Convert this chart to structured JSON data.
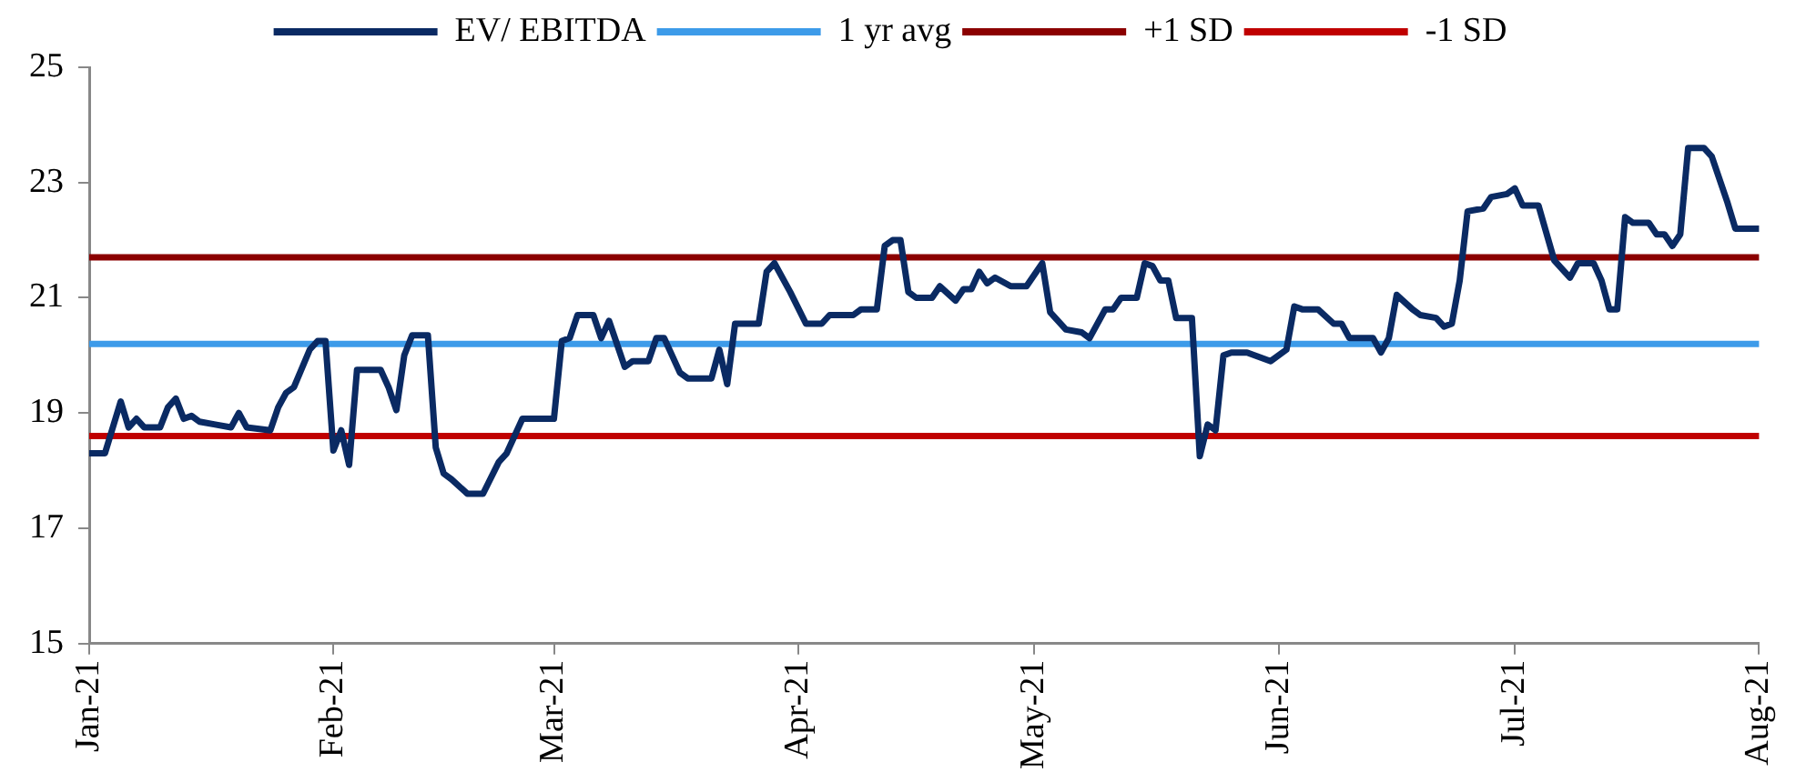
{
  "chart_data": {
    "type": "line",
    "legend": "top",
    "grid": false,
    "marker": "none",
    "line_style": "solid",
    "xlim": [
      "2021-01-01",
      "2021-08-01"
    ],
    "xticks": [
      {
        "value": "2021-01-01",
        "label": "Jan-21"
      },
      {
        "value": "2021-02-01",
        "label": "Feb-21"
      },
      {
        "value": "2021-03-01",
        "label": "Mar-21"
      },
      {
        "value": "2021-04-01",
        "label": "Apr-21"
      },
      {
        "value": "2021-05-01",
        "label": "May-21"
      },
      {
        "value": "2021-06-01",
        "label": "Jun-21"
      },
      {
        "value": "2021-07-01",
        "label": "Jul-21"
      },
      {
        "value": "2021-08-01",
        "label": "Aug-21"
      }
    ],
    "ylim": [
      15,
      25
    ],
    "yticks": [
      15,
      17,
      19,
      21,
      23,
      25
    ],
    "series": [
      {
        "name": "EV/ EBITDA",
        "color": "#0a2a63",
        "x": [
          "2021-01-01",
          "2021-01-03",
          "2021-01-05",
          "2021-01-06",
          "2021-01-07",
          "2021-01-08",
          "2021-01-10",
          "2021-01-11",
          "2021-01-12",
          "2021-01-13",
          "2021-01-14",
          "2021-01-15",
          "2021-01-17",
          "2021-01-19",
          "2021-01-20",
          "2021-01-21",
          "2021-01-24",
          "2021-01-25",
          "2021-01-26",
          "2021-01-27",
          "2021-01-29",
          "2021-01-30",
          "2021-01-31",
          "2021-02-01",
          "2021-02-02",
          "2021-02-03",
          "2021-02-04",
          "2021-02-07",
          "2021-02-08",
          "2021-02-09",
          "2021-02-10",
          "2021-02-11",
          "2021-02-13",
          "2021-02-14",
          "2021-02-15",
          "2021-02-16",
          "2021-02-18",
          "2021-02-20",
          "2021-02-22",
          "2021-02-23",
          "2021-02-25",
          "2021-02-27",
          "2021-03-01",
          "2021-03-02",
          "2021-03-03",
          "2021-03-04",
          "2021-03-06",
          "2021-03-07",
          "2021-03-08",
          "2021-03-10",
          "2021-03-11",
          "2021-03-13",
          "2021-03-14",
          "2021-03-15",
          "2021-03-17",
          "2021-03-18",
          "2021-03-21",
          "2021-03-22",
          "2021-03-23",
          "2021-03-24",
          "2021-03-27",
          "2021-03-28",
          "2021-03-29",
          "2021-03-31",
          "2021-04-02",
          "2021-04-04",
          "2021-04-05",
          "2021-04-08",
          "2021-04-09",
          "2021-04-11",
          "2021-04-12",
          "2021-04-13",
          "2021-04-14",
          "2021-04-15",
          "2021-04-16",
          "2021-04-18",
          "2021-04-19",
          "2021-04-21",
          "2021-04-22",
          "2021-04-23",
          "2021-04-24",
          "2021-04-25",
          "2021-04-26",
          "2021-04-28",
          "2021-04-30",
          "2021-05-02",
          "2021-05-03",
          "2021-05-05",
          "2021-05-07",
          "2021-05-08",
          "2021-05-10",
          "2021-05-11",
          "2021-05-12",
          "2021-05-14",
          "2021-05-15",
          "2021-05-16",
          "2021-05-17",
          "2021-05-18",
          "2021-05-19",
          "2021-05-21",
          "2021-05-22",
          "2021-05-23",
          "2021-05-24",
          "2021-05-25",
          "2021-05-26",
          "2021-05-28",
          "2021-05-31",
          "2021-06-02",
          "2021-06-03",
          "2021-06-04",
          "2021-06-06",
          "2021-06-08",
          "2021-06-09",
          "2021-06-10",
          "2021-06-13",
          "2021-06-14",
          "2021-06-15",
          "2021-06-16",
          "2021-06-18",
          "2021-06-19",
          "2021-06-21",
          "2021-06-22",
          "2021-06-23",
          "2021-06-24",
          "2021-06-25",
          "2021-06-27",
          "2021-06-28",
          "2021-06-30",
          "2021-07-01",
          "2021-07-02",
          "2021-07-04",
          "2021-07-06",
          "2021-07-08",
          "2021-07-09",
          "2021-07-11",
          "2021-07-12",
          "2021-07-13",
          "2021-07-14",
          "2021-07-15",
          "2021-07-16",
          "2021-07-18",
          "2021-07-19",
          "2021-07-20",
          "2021-07-21",
          "2021-07-22",
          "2021-07-23",
          "2021-07-25",
          "2021-07-26",
          "2021-07-28",
          "2021-07-29",
          "2021-08-01"
        ],
        "values": [
          18.3,
          18.3,
          19.2,
          18.75,
          18.9,
          18.75,
          18.75,
          19.1,
          19.25,
          18.9,
          18.95,
          18.85,
          18.8,
          18.75,
          19.0,
          18.75,
          18.7,
          19.1,
          19.35,
          19.45,
          20.1,
          20.25,
          20.25,
          18.35,
          18.7,
          18.1,
          19.75,
          19.75,
          19.45,
          19.05,
          20.0,
          20.35,
          20.35,
          18.4,
          17.95,
          17.85,
          17.6,
          17.6,
          18.15,
          18.3,
          18.9,
          18.9,
          18.9,
          20.25,
          20.3,
          20.7,
          20.7,
          20.3,
          20.6,
          19.8,
          19.9,
          19.9,
          20.3,
          20.3,
          19.7,
          19.6,
          19.6,
          20.1,
          19.5,
          20.55,
          20.55,
          21.45,
          21.6,
          21.1,
          20.55,
          20.55,
          20.7,
          20.7,
          20.8,
          20.8,
          21.9,
          22.0,
          22.0,
          21.1,
          21.0,
          21.0,
          21.2,
          20.95,
          21.15,
          21.15,
          21.45,
          21.25,
          21.35,
          21.2,
          21.2,
          21.6,
          20.75,
          20.45,
          20.4,
          20.3,
          20.8,
          20.8,
          21.0,
          21.0,
          21.6,
          21.55,
          21.3,
          21.3,
          20.65,
          20.65,
          18.25,
          18.8,
          18.7,
          20.0,
          20.05,
          20.05,
          19.9,
          20.1,
          20.85,
          20.8,
          20.8,
          20.55,
          20.55,
          20.3,
          20.3,
          20.05,
          20.3,
          21.05,
          20.8,
          20.7,
          20.65,
          20.5,
          20.55,
          21.3,
          22.5,
          22.55,
          22.75,
          22.8,
          22.9,
          22.6,
          22.6,
          21.65,
          21.35,
          21.6,
          21.6,
          21.3,
          20.8,
          20.8,
          22.4,
          22.3,
          22.3,
          22.1,
          22.1,
          21.9,
          22.1,
          23.6,
          23.6,
          23.45,
          22.65,
          22.2,
          22.2
        ]
      },
      {
        "name": "1 yr avg",
        "color": "#3d9be9",
        "x": [
          "2021-01-01",
          "2021-08-01"
        ],
        "values": [
          20.2,
          20.2
        ]
      },
      {
        "name": "+1 SD",
        "color": "#8b0000",
        "x": [
          "2021-01-01",
          "2021-08-01"
        ],
        "values": [
          21.7,
          21.7
        ]
      },
      {
        "name": "-1 SD",
        "color": "#c00000",
        "x": [
          "2021-01-01",
          "2021-08-01"
        ],
        "values": [
          18.6,
          18.6
        ]
      }
    ]
  }
}
